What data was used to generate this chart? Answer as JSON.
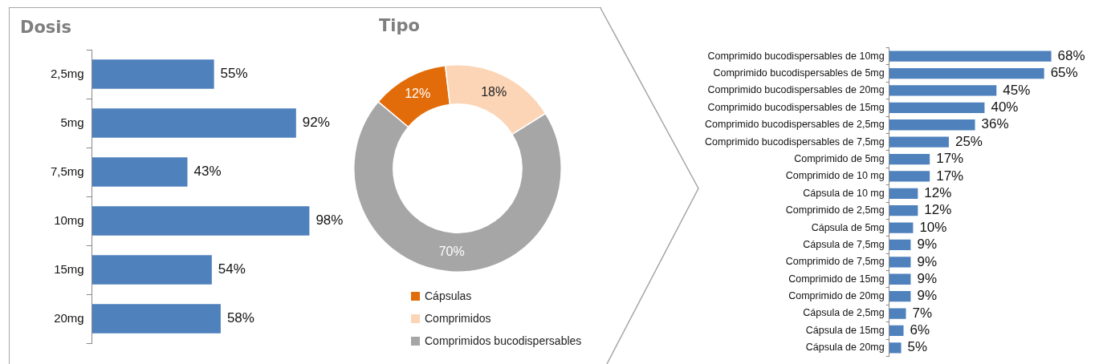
{
  "chart_data": [
    {
      "type": "bar",
      "title": "Dosis",
      "orientation": "horizontal",
      "categories": [
        "2,5mg",
        "5mg",
        "7,5mg",
        "10mg",
        "15mg",
        "20mg"
      ],
      "values": [
        55,
        92,
        43,
        98,
        54,
        58
      ],
      "color": "#4f81bd",
      "value_labels": [
        "55%",
        "92%",
        "43%",
        "98%",
        "54%",
        "58%"
      ]
    },
    {
      "type": "donut",
      "title": "Tipo",
      "categories": [
        "Cápsulas",
        "Comprimidos",
        "Comprimidos bucodispersables"
      ],
      "values": [
        12,
        18,
        70
      ],
      "colors": [
        "#e36c0a",
        "#fbd5b5",
        "#a6a6a6"
      ],
      "value_labels": [
        "12%",
        "18%",
        "70%"
      ],
      "legend": "bottom"
    },
    {
      "type": "bar",
      "orientation": "horizontal",
      "categories": [
        "Comprimido bucodispersables de 10mg",
        "Comprimido bucodispersables de 5mg",
        "Comprimido bucodispersables de 20mg",
        "Comprimido bucodispersables de 15mg",
        "Comprimido bucodispersables de 2,5mg",
        "Comprimido bucodispersables de 7,5mg",
        "Comprimido de 5mg",
        "Comprimido de 10 mg",
        "Cápsula de 10 mg",
        "Comprimido de 2,5mg",
        "Cápsula de 5mg",
        "Cápsula de 7,5mg",
        "Comprimido de 7,5mg",
        "Comprimido de 15mg",
        "Comprimido de 20mg",
        "Cápsula de 2,5mg",
        "Cápsula de 15mg",
        "Cápsula de 20mg"
      ],
      "values": [
        68,
        65,
        45,
        40,
        36,
        25,
        17,
        17,
        12,
        12,
        10,
        9,
        9,
        9,
        9,
        7,
        6,
        5
      ],
      "color": "#4f81bd",
      "value_labels": [
        "68%",
        "65%",
        "45%",
        "40%",
        "36%",
        "25%",
        "17%",
        "17%",
        "12%",
        "12%",
        "10%",
        "9%",
        "9%",
        "9%",
        "9%",
        "7%",
        "6%",
        "5%"
      ]
    }
  ]
}
